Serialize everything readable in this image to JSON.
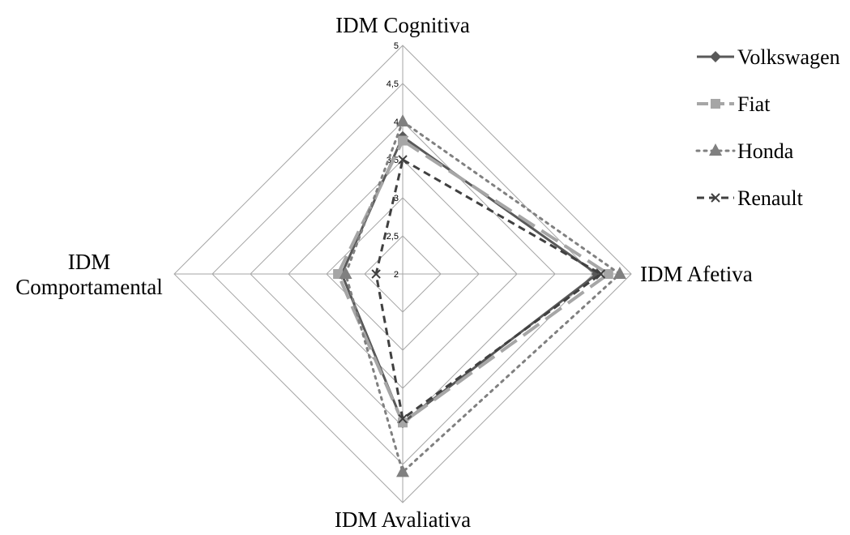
{
  "chart_data": {
    "type": "radar",
    "axes": [
      "IDM Cognitiva",
      "IDM Afetiva",
      "IDM Avaliativa",
      "IDM Comportamental"
    ],
    "axis_title_lines": [
      [
        "IDM Cognitiva"
      ],
      [
        "IDM Afetiva"
      ],
      [
        "IDM Avaliativa"
      ],
      [
        "IDM",
        "Comportamental"
      ]
    ],
    "rlim": [
      2,
      5
    ],
    "ticks": [
      2,
      2.5,
      3,
      3.5,
      4,
      4.5,
      5
    ],
    "tick_labels": [
      "2",
      "2,5",
      "3",
      "3,5",
      "4",
      "4,5",
      "5"
    ],
    "grid": true,
    "legend_position": "top-right",
    "series": [
      {
        "name": "Volkswagen",
        "values": [
          3.8,
          4.55,
          3.95,
          2.8
        ],
        "color": "#595959",
        "line": "solid",
        "marker": "diamond"
      },
      {
        "name": "Fiat",
        "values": [
          3.75,
          4.7,
          3.95,
          2.85
        ],
        "color": "#a6a6a6",
        "line": "long-dash",
        "marker": "square"
      },
      {
        "name": "Honda",
        "values": [
          4.0,
          4.85,
          4.6,
          2.75
        ],
        "color": "#808080",
        "line": "dotted",
        "marker": "triangle"
      },
      {
        "name": "Renault",
        "values": [
          3.5,
          4.6,
          3.9,
          2.35
        ],
        "color": "#404040",
        "line": "dashed",
        "marker": "x"
      }
    ]
  }
}
